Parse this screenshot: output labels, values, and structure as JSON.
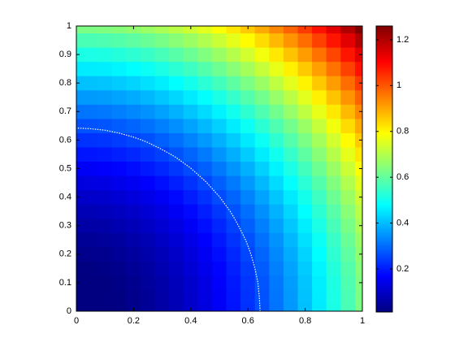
{
  "chart_data": {
    "type": "contourf",
    "x": [
      0,
      0.05,
      0.1,
      0.15,
      0.2,
      0.25,
      0.3,
      0.35,
      0.4,
      0.45,
      0.5,
      0.55,
      0.6,
      0.65,
      0.7,
      0.75,
      0.8,
      0.85,
      0.9,
      0.95,
      1
    ],
    "y": [
      0,
      0.05,
      0.1,
      0.15,
      0.2,
      0.25,
      0.3,
      0.35,
      0.4,
      0.45,
      0.5,
      0.55,
      0.6,
      0.65,
      0.7,
      0.75,
      0.8,
      0.85,
      0.9,
      0.95,
      1
    ],
    "z": [
      [
        0,
        0.002,
        0.006,
        0.014,
        0.025,
        0.039,
        0.057,
        0.077,
        0.101,
        0.128,
        0.158,
        0.191,
        0.227,
        0.266,
        0.309,
        0.354,
        0.403,
        0.455,
        0.51,
        0.569,
        0.63
      ],
      [
        0.002,
        0.004,
        0.008,
        0.016,
        0.027,
        0.041,
        0.059,
        0.079,
        0.103,
        0.13,
        0.16,
        0.193,
        0.229,
        0.268,
        0.311,
        0.356,
        0.405,
        0.457,
        0.512,
        0.571,
        0.632
      ],
      [
        0.006,
        0.008,
        0.012,
        0.02,
        0.031,
        0.045,
        0.063,
        0.083,
        0.107,
        0.134,
        0.164,
        0.197,
        0.233,
        0.272,
        0.315,
        0.36,
        0.409,
        0.461,
        0.516,
        0.575,
        0.636
      ],
      [
        0.014,
        0.016,
        0.02,
        0.028,
        0.039,
        0.053,
        0.071,
        0.091,
        0.115,
        0.142,
        0.172,
        0.205,
        0.241,
        0.28,
        0.323,
        0.368,
        0.417,
        0.469,
        0.524,
        0.583,
        0.644
      ],
      [
        0.025,
        0.027,
        0.031,
        0.039,
        0.05,
        0.064,
        0.082,
        0.102,
        0.126,
        0.153,
        0.183,
        0.216,
        0.252,
        0.291,
        0.334,
        0.379,
        0.428,
        0.48,
        0.535,
        0.594,
        0.655
      ],
      [
        0.039,
        0.041,
        0.045,
        0.053,
        0.064,
        0.078,
        0.096,
        0.116,
        0.14,
        0.167,
        0.197,
        0.23,
        0.266,
        0.305,
        0.348,
        0.393,
        0.442,
        0.494,
        0.549,
        0.608,
        0.669
      ],
      [
        0.057,
        0.059,
        0.063,
        0.071,
        0.082,
        0.096,
        0.114,
        0.134,
        0.158,
        0.185,
        0.215,
        0.248,
        0.284,
        0.323,
        0.366,
        0.411,
        0.46,
        0.512,
        0.567,
        0.626,
        0.687
      ],
      [
        0.077,
        0.079,
        0.083,
        0.091,
        0.102,
        0.116,
        0.134,
        0.154,
        0.178,
        0.205,
        0.235,
        0.268,
        0.304,
        0.343,
        0.386,
        0.431,
        0.48,
        0.532,
        0.587,
        0.646,
        0.707
      ],
      [
        0.101,
        0.103,
        0.107,
        0.115,
        0.126,
        0.14,
        0.158,
        0.178,
        0.202,
        0.229,
        0.259,
        0.292,
        0.328,
        0.367,
        0.41,
        0.455,
        0.504,
        0.556,
        0.611,
        0.67,
        0.731
      ],
      [
        0.128,
        0.13,
        0.134,
        0.142,
        0.153,
        0.167,
        0.185,
        0.205,
        0.229,
        0.256,
        0.286,
        0.319,
        0.355,
        0.394,
        0.437,
        0.482,
        0.531,
        0.583,
        0.638,
        0.697,
        0.758
      ],
      [
        0.158,
        0.16,
        0.164,
        0.172,
        0.183,
        0.197,
        0.215,
        0.235,
        0.259,
        0.286,
        0.316,
        0.349,
        0.385,
        0.424,
        0.467,
        0.512,
        0.561,
        0.613,
        0.668,
        0.727,
        0.788
      ],
      [
        0.191,
        0.193,
        0.197,
        0.205,
        0.216,
        0.23,
        0.248,
        0.268,
        0.292,
        0.319,
        0.349,
        0.382,
        0.418,
        0.457,
        0.5,
        0.545,
        0.594,
        0.646,
        0.701,
        0.76,
        0.821
      ],
      [
        0.227,
        0.229,
        0.233,
        0.241,
        0.252,
        0.266,
        0.284,
        0.304,
        0.328,
        0.355,
        0.385,
        0.418,
        0.454,
        0.493,
        0.536,
        0.581,
        0.63,
        0.682,
        0.737,
        0.796,
        0.857
      ],
      [
        0.266,
        0.268,
        0.272,
        0.28,
        0.291,
        0.305,
        0.323,
        0.343,
        0.367,
        0.394,
        0.424,
        0.457,
        0.493,
        0.532,
        0.575,
        0.62,
        0.669,
        0.721,
        0.776,
        0.835,
        0.896
      ],
      [
        0.309,
        0.311,
        0.315,
        0.323,
        0.334,
        0.348,
        0.366,
        0.386,
        0.41,
        0.437,
        0.467,
        0.5,
        0.536,
        0.575,
        0.618,
        0.663,
        0.712,
        0.764,
        0.819,
        0.878,
        0.939
      ],
      [
        0.354,
        0.356,
        0.36,
        0.368,
        0.379,
        0.393,
        0.411,
        0.431,
        0.455,
        0.482,
        0.512,
        0.545,
        0.581,
        0.62,
        0.663,
        0.708,
        0.757,
        0.809,
        0.864,
        0.923,
        0.984
      ],
      [
        0.403,
        0.405,
        0.409,
        0.417,
        0.428,
        0.442,
        0.46,
        0.48,
        0.504,
        0.531,
        0.561,
        0.594,
        0.63,
        0.669,
        0.712,
        0.757,
        0.806,
        0.858,
        0.913,
        0.972,
        1.033
      ],
      [
        0.455,
        0.457,
        0.461,
        0.469,
        0.48,
        0.494,
        0.512,
        0.532,
        0.556,
        0.583,
        0.613,
        0.646,
        0.682,
        0.721,
        0.764,
        0.809,
        0.858,
        0.91,
        0.965,
        1.024,
        1.085
      ],
      [
        0.51,
        0.512,
        0.516,
        0.524,
        0.535,
        0.549,
        0.567,
        0.587,
        0.611,
        0.638,
        0.668,
        0.701,
        0.737,
        0.776,
        0.819,
        0.864,
        0.913,
        0.965,
        1.02,
        1.079,
        1.14
      ],
      [
        0.569,
        0.571,
        0.575,
        0.583,
        0.594,
        0.608,
        0.626,
        0.646,
        0.67,
        0.697,
        0.727,
        0.76,
        0.796,
        0.835,
        0.878,
        0.923,
        0.972,
        1.024,
        1.079,
        1.138,
        1.199
      ],
      [
        0.63,
        0.632,
        0.636,
        0.644,
        0.655,
        0.669,
        0.687,
        0.707,
        0.731,
        0.758,
        0.788,
        0.821,
        0.857,
        0.896,
        0.939,
        0.984,
        1.033,
        1.085,
        1.14,
        1.199,
        1.26
      ]
    ],
    "contour_level": 0.26,
    "contour_color": "#ffffff",
    "colormap": "jet",
    "xlim": [
      0,
      1
    ],
    "ylim": [
      0,
      1
    ],
    "xticks": [
      0,
      0.2,
      0.4,
      0.6,
      0.8,
      1
    ],
    "yticks": [
      0,
      0.1,
      0.2,
      0.3,
      0.4,
      0.5,
      0.6,
      0.7,
      0.8,
      0.9,
      1
    ],
    "clim": [
      0.012,
      1.26
    ],
    "colorbar_ticks": [
      0.2,
      0.4,
      0.6,
      0.8,
      1,
      1.2
    ]
  }
}
